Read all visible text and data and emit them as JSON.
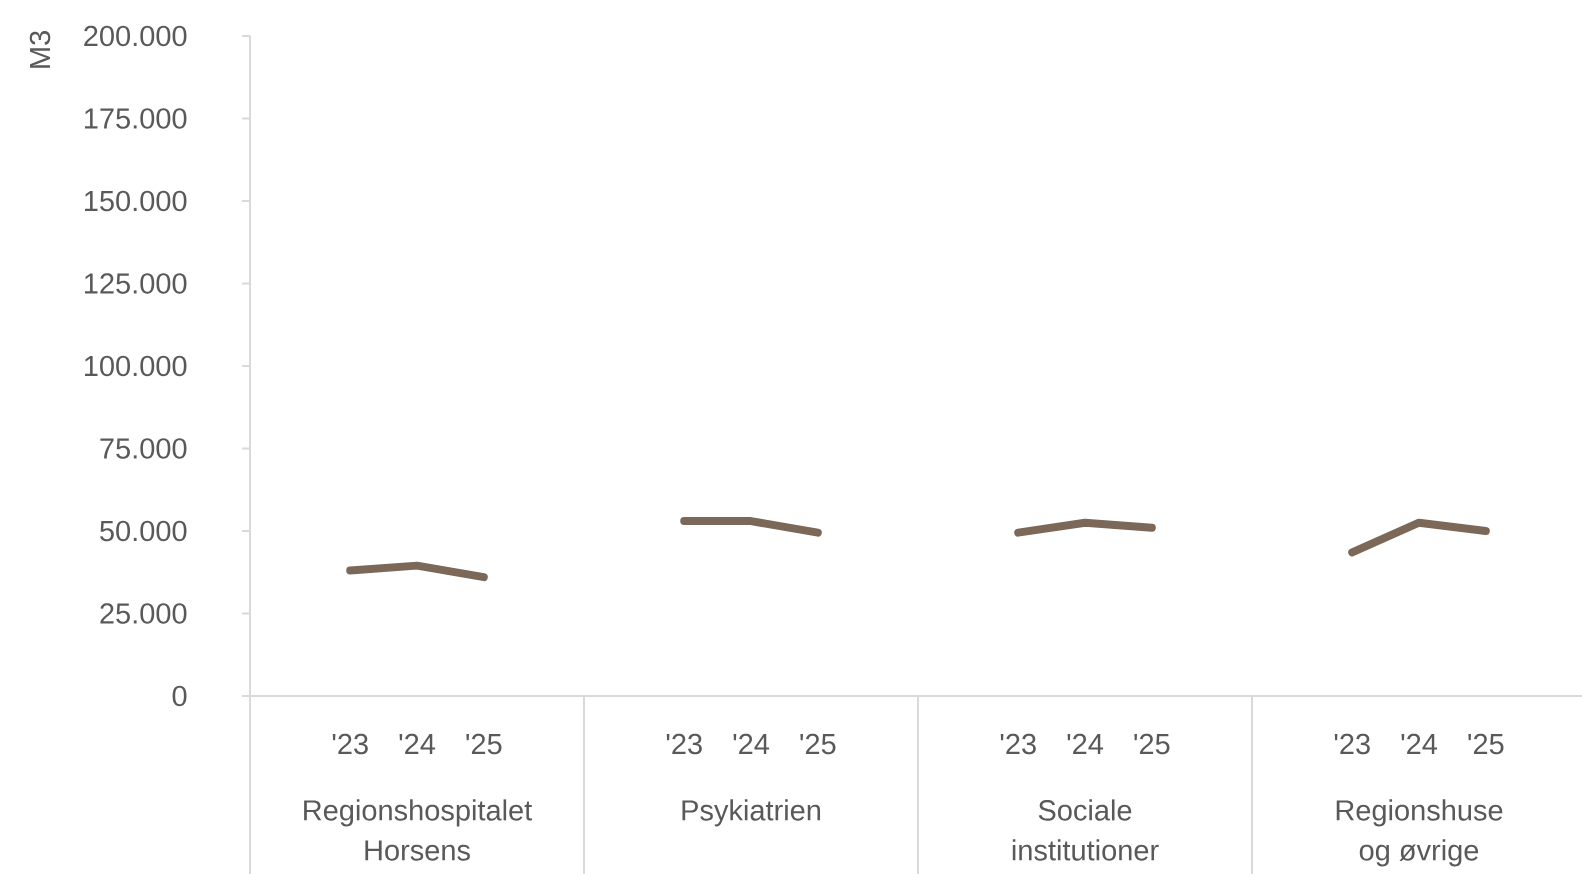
{
  "chart_data": {
    "type": "line",
    "ylabel": "M3",
    "categories": [
      null,
      "'23",
      "'24",
      "'25",
      null,
      null,
      "'23",
      "'24",
      "'25",
      null,
      null,
      "'23",
      "'24",
      "'25",
      null,
      null,
      "'23",
      "'24",
      "'25",
      null
    ],
    "series": [
      {
        "color": "#7b6858",
        "values": [
          null,
          38000,
          39500,
          36000,
          null,
          null,
          53000,
          53000,
          49500,
          null,
          null,
          49500,
          52500,
          51000,
          null,
          null,
          43500,
          52500,
          50000,
          null
        ]
      }
    ],
    "ylim": [
      0,
      200000
    ],
    "yticks": [
      0,
      {
        "value": 25000,
        "label": "25.000"
      },
      {
        "value": 50000,
        "label": "50.000"
      },
      {
        "value": 75000,
        "label": "75.000"
      },
      {
        "value": 100000,
        "label": "100.000"
      },
      {
        "value": 125000,
        "label": "125.000"
      },
      {
        "value": 150000,
        "label": "150.000"
      },
      {
        "value": 175000,
        "label": "175.000"
      },
      {
        "value": 200000,
        "label": "200.000"
      }
    ],
    "marker": "none",
    "line_style": "solid",
    "annotations": [
      "Regionshospitalet Horsens",
      "Psykiatrien",
      "Sociale institutioner",
      "Regionshuse og øvrige"
    ]
  }
}
